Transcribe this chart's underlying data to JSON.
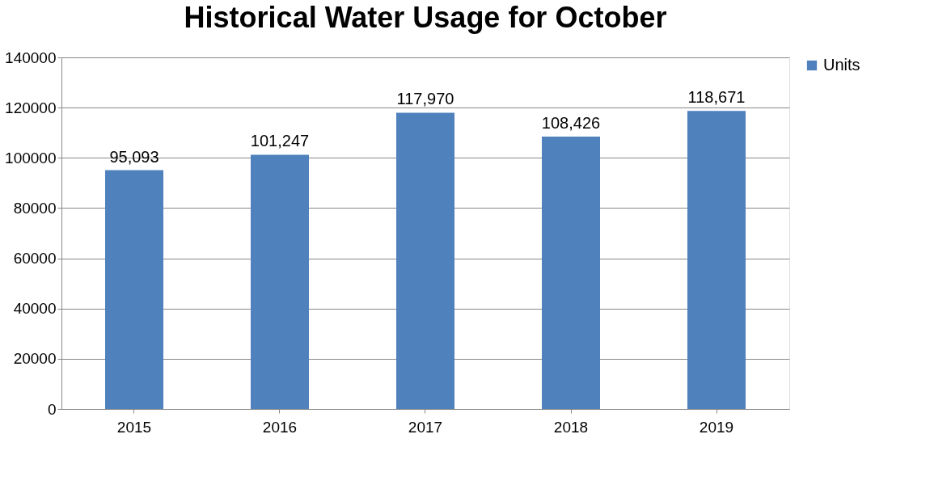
{
  "chart_data": {
    "type": "bar",
    "title": "Historical Water Usage for October",
    "categories": [
      "2015",
      "2016",
      "2017",
      "2018",
      "2019"
    ],
    "series": [
      {
        "name": "Units",
        "color": "#4f81bd",
        "values": [
          95093,
          101247,
          117970,
          108426,
          118671
        ],
        "value_labels": [
          "95,093",
          "101,247",
          "117,970",
          "108,426",
          "118,671"
        ]
      }
    ],
    "ylim": [
      0,
      140000
    ],
    "yticks": [
      0,
      20000,
      40000,
      60000,
      80000,
      100000,
      120000,
      140000
    ],
    "grid": "y",
    "legend": "right"
  }
}
